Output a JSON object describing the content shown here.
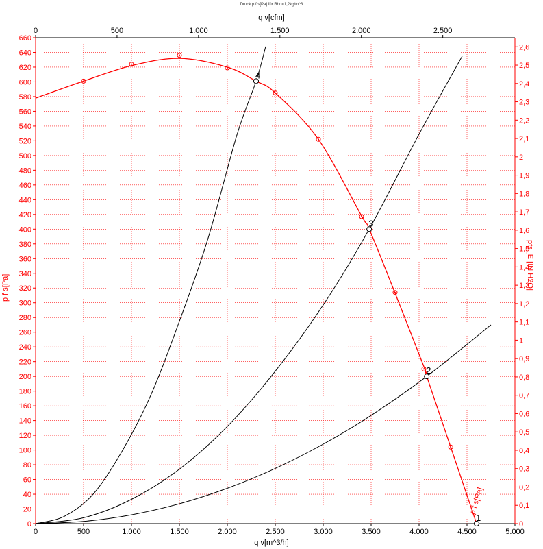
{
  "chart_data": {
    "type": "line",
    "title": "Druck p f s[Pa] für Rho=1,2kg/m^3",
    "xlabel": "q v[m^3/h]",
    "x2label": "q v[cfm]",
    "ylabel": "p f s[Pa]",
    "y2label": "pfs_E [IN H2O]",
    "xlim": [
      0,
      5000
    ],
    "ylim": [
      0,
      660
    ],
    "x2lim": [
      0,
      2942.9
    ],
    "y2lim": [
      0,
      2.6496
    ],
    "x_ticks": [
      "0",
      "500",
      "1.000",
      "1.500",
      "2.000",
      "2.500",
      "3.000",
      "3.500",
      "4.000",
      "4.500",
      "5.000"
    ],
    "x2_ticks": [
      "0",
      "500",
      "1.000",
      "1.500",
      "2.000",
      "2.500"
    ],
    "y_ticks": [
      "0",
      "20",
      "40",
      "60",
      "80",
      "100",
      "120",
      "140",
      "160",
      "180",
      "200",
      "220",
      "240",
      "260",
      "280",
      "300",
      "320",
      "340",
      "360",
      "380",
      "400",
      "420",
      "440",
      "460",
      "480",
      "500",
      "520",
      "540",
      "560",
      "580",
      "600",
      "620",
      "640",
      "660"
    ],
    "y2_ticks": [
      "0",
      "0,1",
      "0,2",
      "0,3",
      "0,4",
      "0,5",
      "0,6",
      "0,7",
      "0,8",
      "0,9",
      "1",
      "1,1",
      "1,2",
      "1,3",
      "1,4",
      "1,5",
      "1,6",
      "1,7",
      "1,8",
      "1,9",
      "2",
      "2,1",
      "2,2",
      "2,3",
      "2,4",
      "2,5",
      "2,6"
    ],
    "grid": true,
    "colors": {
      "fan_curve": "#ff0000",
      "system_curves": "#000000",
      "grid": "#ff0000",
      "axes_red": "#ff0000"
    },
    "series": [
      {
        "name": "p f s[Pa]",
        "kind": "fan-curve",
        "x": [
          0,
          500,
          1000,
          1500,
          2000,
          2300,
          2500,
          2950,
          3400,
          3480,
          3750,
          4060,
          4080,
          4330,
          4600
        ],
        "values": [
          578,
          601,
          622,
          632,
          620,
          601,
          585,
          522,
          418,
          400,
          313,
          210,
          200,
          104,
          0
        ]
      },
      {
        "name": "",
        "kind": "system-curve",
        "x": [
          0,
          300,
          600,
          900,
          1200,
          1500,
          1800,
          2100,
          2300,
          2400
        ],
        "values": [
          0,
          10,
          40,
          98,
          174,
          275,
          388,
          528,
          601,
          648
        ]
      },
      {
        "name": "",
        "kind": "system-curve",
        "x": [
          0,
          500,
          1000,
          1500,
          2000,
          2500,
          3000,
          3480,
          4000,
          4450
        ],
        "values": [
          0,
          8,
          33,
          74,
          132,
          207,
          297,
          400,
          529,
          635
        ]
      },
      {
        "name": "",
        "kind": "system-curve",
        "x": [
          0,
          500,
          1000,
          1500,
          2000,
          2500,
          3000,
          3500,
          4080,
          4750
        ],
        "values": [
          0,
          3,
          12,
          27,
          48,
          75,
          108,
          147,
          200,
          270
        ]
      }
    ],
    "markers": [
      {
        "x": 500,
        "y": 601
      },
      {
        "x": 1000,
        "y": 624
      },
      {
        "x": 1500,
        "y": 636
      },
      {
        "x": 2000,
        "y": 619
      },
      {
        "x": 2500,
        "y": 585
      },
      {
        "x": 2950,
        "y": 522
      },
      {
        "x": 3400,
        "y": 417
      },
      {
        "x": 3750,
        "y": 314
      },
      {
        "x": 4050,
        "y": 210
      },
      {
        "x": 4330,
        "y": 104
      }
    ],
    "operating_points": [
      {
        "label": "1",
        "x": 4600,
        "y": 0
      },
      {
        "label": "2",
        "x": 4080,
        "y": 200
      },
      {
        "label": "3",
        "x": 3480,
        "y": 400
      },
      {
        "label": "4",
        "x": 2300,
        "y": 601
      }
    ],
    "curve_label": "p f s[Pa]"
  }
}
